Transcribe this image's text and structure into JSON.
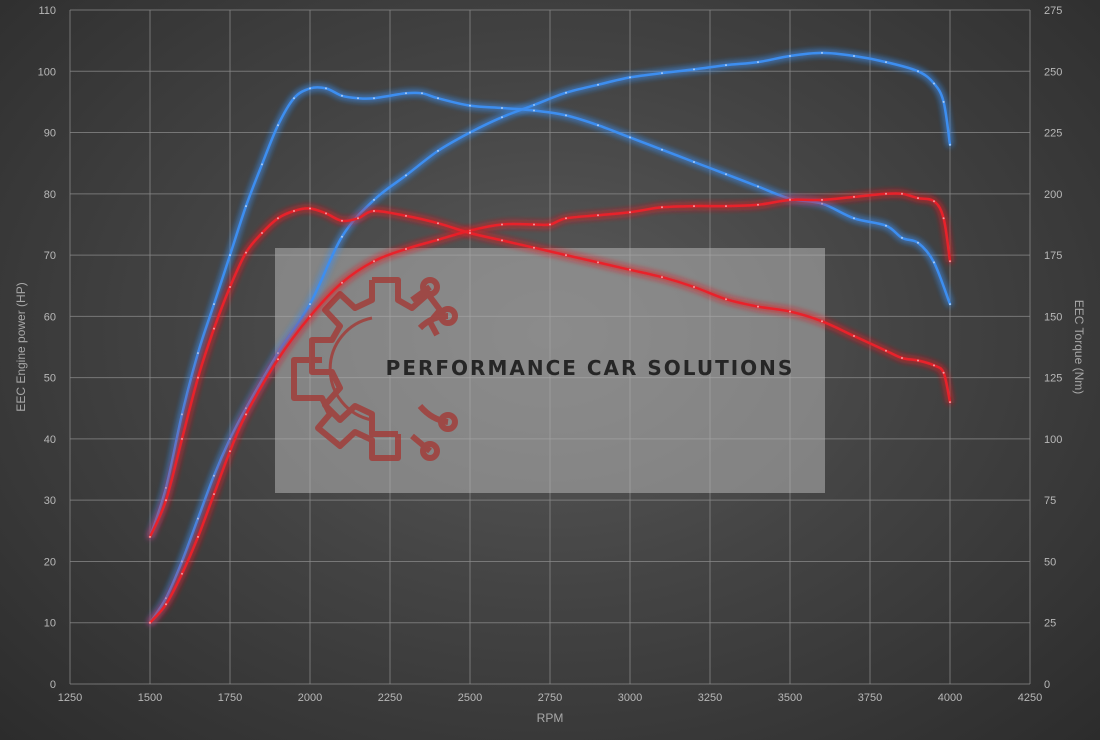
{
  "watermark": {
    "text": "PERFORMANCE CAR SOLUTIONS",
    "text_color": "#262626",
    "logo_color": "#a33a36"
  },
  "chart_data": {
    "type": "line",
    "xlabel": "RPM",
    "ylabel_left": "EEC Engine power (HP)",
    "ylabel_right": "EEC Torque (Nm)",
    "xlim": [
      1250,
      4250
    ],
    "ylim_left": [
      0,
      110
    ],
    "ylim_right": [
      0,
      275
    ],
    "x_ticks": [
      "1250",
      "1500",
      "1750",
      "2000",
      "2250",
      "2500",
      "2750",
      "3000",
      "3250",
      "3500",
      "3750",
      "4000",
      "4250"
    ],
    "y_ticks_left": [
      "0",
      "10",
      "20",
      "30",
      "40",
      "50",
      "60",
      "70",
      "80",
      "90",
      "100",
      "110"
    ],
    "y_ticks_right": [
      "0",
      "25",
      "50",
      "75",
      "100",
      "125",
      "150",
      "175",
      "200",
      "225",
      "250",
      "275"
    ],
    "grid": true,
    "series": [
      {
        "axis": "left",
        "color": "#3d8ef0",
        "points": [
          [
            1500,
            10
          ],
          [
            1550,
            14
          ],
          [
            1600,
            20
          ],
          [
            1650,
            27
          ],
          [
            1700,
            34
          ],
          [
            1750,
            40
          ],
          [
            1800,
            45
          ],
          [
            1900,
            54
          ],
          [
            2000,
            62
          ],
          [
            2100,
            73
          ],
          [
            2200,
            79
          ],
          [
            2300,
            83
          ],
          [
            2400,
            87
          ],
          [
            2500,
            90
          ],
          [
            2600,
            92.5
          ],
          [
            2700,
            94.5
          ],
          [
            2800,
            96.5
          ],
          [
            2900,
            97.8
          ],
          [
            3000,
            99
          ],
          [
            3100,
            99.7
          ],
          [
            3200,
            100.3
          ],
          [
            3300,
            101
          ],
          [
            3400,
            101.5
          ],
          [
            3500,
            102.5
          ],
          [
            3600,
            103
          ],
          [
            3700,
            102.5
          ],
          [
            3800,
            101.5
          ],
          [
            3900,
            100
          ],
          [
            3950,
            98
          ],
          [
            3980,
            95
          ],
          [
            4000,
            88
          ]
        ]
      },
      {
        "axis": "right",
        "color": "#3d8ef0",
        "points": [
          [
            1500,
            60
          ],
          [
            1550,
            80
          ],
          [
            1600,
            110
          ],
          [
            1650,
            135
          ],
          [
            1700,
            155
          ],
          [
            1750,
            175
          ],
          [
            1800,
            195
          ],
          [
            1850,
            212
          ],
          [
            1900,
            228
          ],
          [
            1950,
            239
          ],
          [
            2000,
            243
          ],
          [
            2050,
            243
          ],
          [
            2100,
            240
          ],
          [
            2150,
            239
          ],
          [
            2200,
            239
          ],
          [
            2300,
            241
          ],
          [
            2350,
            241
          ],
          [
            2400,
            239
          ],
          [
            2500,
            236
          ],
          [
            2600,
            235
          ],
          [
            2700,
            234
          ],
          [
            2800,
            232
          ],
          [
            2900,
            228
          ],
          [
            3000,
            223
          ],
          [
            3100,
            218
          ],
          [
            3200,
            213
          ],
          [
            3300,
            208
          ],
          [
            3400,
            203
          ],
          [
            3500,
            198
          ],
          [
            3600,
            196
          ],
          [
            3700,
            190
          ],
          [
            3800,
            187
          ],
          [
            3850,
            182
          ],
          [
            3900,
            180
          ],
          [
            3950,
            172
          ],
          [
            4000,
            155
          ]
        ]
      },
      {
        "axis": "left",
        "color": "#e8242a",
        "points": [
          [
            1500,
            10
          ],
          [
            1550,
            13
          ],
          [
            1600,
            18
          ],
          [
            1650,
            24
          ],
          [
            1700,
            31
          ],
          [
            1750,
            38
          ],
          [
            1800,
            44
          ],
          [
            1900,
            53
          ],
          [
            2000,
            60
          ],
          [
            2100,
            65.5
          ],
          [
            2200,
            69
          ],
          [
            2300,
            71
          ],
          [
            2400,
            72.5
          ],
          [
            2500,
            74
          ],
          [
            2600,
            75
          ],
          [
            2700,
            75
          ],
          [
            2750,
            75
          ],
          [
            2800,
            76
          ],
          [
            2900,
            76.5
          ],
          [
            3000,
            77
          ],
          [
            3100,
            77.8
          ],
          [
            3200,
            78
          ],
          [
            3300,
            78
          ],
          [
            3400,
            78.2
          ],
          [
            3500,
            79
          ],
          [
            3600,
            79
          ],
          [
            3700,
            79.5
          ],
          [
            3800,
            80
          ],
          [
            3850,
            80
          ],
          [
            3900,
            79.3
          ],
          [
            3950,
            78.8
          ],
          [
            3980,
            76
          ],
          [
            4000,
            69
          ]
        ]
      },
      {
        "axis": "right",
        "color": "#e8242a",
        "points": [
          [
            1500,
            60
          ],
          [
            1550,
            75
          ],
          [
            1600,
            100
          ],
          [
            1650,
            125
          ],
          [
            1700,
            145
          ],
          [
            1750,
            162
          ],
          [
            1800,
            176
          ],
          [
            1850,
            184
          ],
          [
            1900,
            190
          ],
          [
            1950,
            193
          ],
          [
            2000,
            194
          ],
          [
            2050,
            192
          ],
          [
            2100,
            189
          ],
          [
            2150,
            190
          ],
          [
            2200,
            193
          ],
          [
            2300,
            191
          ],
          [
            2400,
            188
          ],
          [
            2500,
            184
          ],
          [
            2600,
            181
          ],
          [
            2700,
            178
          ],
          [
            2800,
            175
          ],
          [
            2900,
            172
          ],
          [
            3000,
            169
          ],
          [
            3100,
            166
          ],
          [
            3200,
            162
          ],
          [
            3300,
            157
          ],
          [
            3400,
            154
          ],
          [
            3500,
            152
          ],
          [
            3600,
            148
          ],
          [
            3700,
            142
          ],
          [
            3800,
            136
          ],
          [
            3850,
            133
          ],
          [
            3900,
            132
          ],
          [
            3950,
            130
          ],
          [
            3980,
            127
          ],
          [
            4000,
            115
          ]
        ]
      }
    ]
  }
}
